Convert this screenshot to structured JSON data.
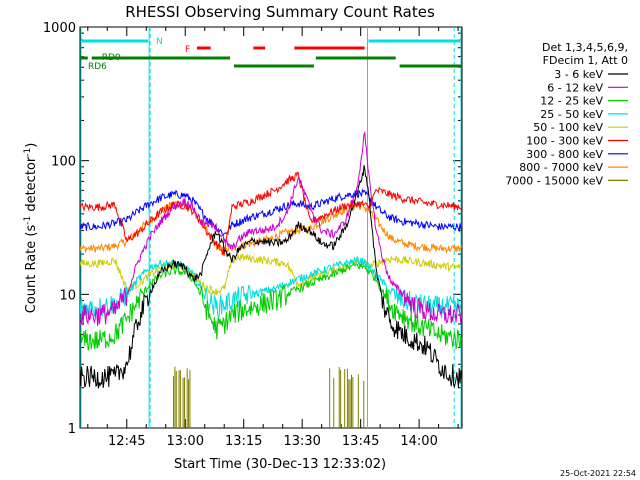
{
  "chart_data": {
    "type": "line",
    "title": "RHESSI Observing Summary Count Rates",
    "xlabel": "Start Time (30-Dec-13 12:33:02)",
    "ylabel_parts": [
      "Count Rate (s",
      "-1",
      " detector",
      "-1",
      ")"
    ],
    "yscale": "log",
    "ylim": [
      1,
      1000
    ],
    "xlim_minutes": [
      0,
      98
    ],
    "x_start": "12:33:02",
    "x_ticks": [
      {
        "label": "12:45",
        "t": 12
      },
      {
        "label": "13:00",
        "t": 27
      },
      {
        "label": "13:15",
        "t": 42
      },
      {
        "label": "13:30",
        "t": 57
      },
      {
        "label": "13:45",
        "t": 72
      },
      {
        "label": "14:00",
        "t": 87
      }
    ],
    "y_ticks": [
      {
        "label": "1",
        "v": 1
      },
      {
        "label": "10",
        "v": 10
      },
      {
        "label": "100",
        "v": 100
      },
      {
        "label": "1000",
        "v": 1000
      }
    ],
    "legend_header": [
      "Det 1,3,4,5,6,9,",
      "FDecim 1, Att 0"
    ],
    "legend_placement": "right",
    "series": [
      {
        "name": "3 - 6 keV",
        "color": "#000000",
        "x": [
          0,
          5,
          9,
          12,
          15,
          18,
          21,
          24,
          27,
          29,
          31,
          33,
          35,
          37,
          39,
          41,
          44,
          47,
          50,
          53,
          56,
          59,
          62,
          65,
          68,
          71,
          73,
          74,
          76,
          78,
          80,
          83,
          86,
          89,
          92,
          95,
          98
        ],
        "y": [
          2.4,
          2.4,
          2.4,
          3.0,
          6.5,
          10.5,
          15,
          17,
          16,
          13,
          14,
          22,
          30,
          22,
          18,
          22,
          25,
          25,
          24,
          25,
          33,
          30,
          24,
          23,
          31,
          55,
          90,
          60,
          15,
          8,
          6,
          5,
          4.5,
          4,
          3,
          2.5,
          2.4
        ]
      },
      {
        "name": "6 - 12 keV",
        "color": "#cc00cc",
        "x": [
          0,
          5,
          9,
          12,
          15,
          18,
          21,
          24,
          27,
          29,
          31,
          33,
          35,
          37,
          39,
          41,
          44,
          47,
          50,
          53,
          56,
          59,
          62,
          65,
          68,
          71,
          73,
          74,
          76,
          78,
          80,
          83,
          86,
          89,
          92,
          95,
          98
        ],
        "y": [
          7,
          7,
          7.5,
          10,
          18,
          27,
          36,
          45,
          50,
          45,
          35,
          33,
          32,
          25,
          22,
          26,
          30,
          30,
          32,
          40,
          75,
          45,
          30,
          28,
          35,
          60,
          160,
          80,
          30,
          17,
          12,
          10,
          8,
          7.5,
          7,
          7,
          7
        ]
      },
      {
        "name": "12 - 25 keV",
        "color": "#00cc00",
        "x": [
          0,
          5,
          9,
          12,
          15,
          18,
          21,
          24,
          27,
          29,
          31,
          33,
          35,
          37,
          39,
          41,
          44,
          47,
          50,
          53,
          56,
          59,
          62,
          65,
          68,
          71,
          73,
          74,
          76,
          78,
          80,
          83,
          86,
          89,
          92,
          95,
          98
        ],
        "y": [
          4.5,
          4.5,
          5,
          6.5,
          9,
          12,
          14,
          15,
          14.5,
          13,
          10,
          7,
          5.5,
          6,
          7,
          7.5,
          8,
          8.5,
          9,
          10,
          11,
          12,
          13,
          14,
          15.5,
          16.5,
          16,
          15,
          13,
          10,
          8,
          7,
          6,
          5.5,
          5,
          4.8,
          4.5
        ]
      },
      {
        "name": "25 - 50 keV",
        "color": "#00dddd",
        "x": [
          0,
          5,
          9,
          12,
          15,
          18,
          21,
          24,
          27,
          29,
          31,
          33,
          35,
          37,
          39,
          41,
          44,
          47,
          50,
          53,
          56,
          59,
          62,
          65,
          68,
          71,
          73,
          74,
          76,
          78,
          80,
          83,
          86,
          89,
          92,
          95,
          98
        ],
        "y": [
          8,
          8,
          8.5,
          10,
          13,
          16,
          17,
          17,
          16,
          14,
          11,
          9,
          8,
          8.5,
          9,
          9.5,
          10,
          10.5,
          11,
          12,
          13,
          14,
          15,
          16,
          17,
          18,
          17.5,
          16,
          14,
          12,
          10,
          9,
          8.5,
          8.2,
          8,
          8,
          8
        ]
      },
      {
        "name": "50 - 100 keV",
        "color": "#cccc00",
        "x": [
          0,
          5,
          9,
          12,
          15,
          18,
          21,
          24,
          27,
          29,
          31,
          33,
          35,
          37,
          39,
          41,
          44,
          47,
          50,
          53,
          56,
          59,
          62,
          65,
          68,
          71,
          73,
          74,
          76,
          78,
          80,
          83,
          86,
          89,
          92,
          95,
          98
        ],
        "y": [
          17,
          17,
          18,
          11,
          12,
          14,
          16,
          16.5,
          16,
          14,
          12,
          11,
          10.5,
          11,
          18,
          19,
          18.5,
          18,
          17.5,
          17,
          12,
          13,
          14,
          15,
          16,
          17.5,
          17,
          16,
          17,
          18,
          18.5,
          18,
          17.5,
          17,
          16.5,
          16,
          16
        ]
      },
      {
        "name": "100 - 300 keV",
        "color": "#ff0000",
        "x": [
          0,
          5,
          9,
          12,
          15,
          18,
          21,
          24,
          27,
          29,
          31,
          33,
          35,
          37,
          39,
          41,
          44,
          47,
          50,
          53,
          56,
          59,
          62,
          65,
          68,
          71,
          73,
          74,
          76,
          78,
          80,
          83,
          86,
          89,
          92,
          95,
          98
        ],
        "y": [
          45,
          45,
          47,
          25,
          29,
          35,
          42,
          47,
          46,
          42,
          35,
          28,
          24,
          20,
          45,
          47,
          50,
          55,
          60,
          70,
          78,
          35,
          38,
          42,
          46,
          48,
          47,
          44,
          60,
          58,
          55,
          52,
          50,
          48,
          47,
          46,
          45
        ]
      },
      {
        "name": "300 - 800 keV",
        "color": "#0000ff",
        "x": [
          0,
          5,
          9,
          12,
          15,
          18,
          21,
          24,
          27,
          29,
          31,
          33,
          35,
          37,
          39,
          41,
          44,
          47,
          50,
          53,
          56,
          59,
          62,
          65,
          68,
          71,
          73,
          74,
          76,
          78,
          80,
          83,
          86,
          89,
          92,
          95,
          98
        ],
        "y": [
          32,
          32,
          34,
          36,
          42,
          48,
          53,
          56,
          55,
          50,
          42,
          36,
          32,
          28,
          33,
          35,
          38,
          40,
          43,
          46,
          48,
          45,
          48,
          52,
          55,
          57,
          56,
          54,
          45,
          40,
          37,
          35,
          34,
          33,
          32,
          32,
          32
        ]
      },
      {
        "name": "800 - 7000 keV",
        "color": "#ff8800",
        "x": [
          0,
          5,
          9,
          12,
          15,
          18,
          21,
          24,
          27,
          29,
          31,
          33,
          35,
          37,
          39,
          41,
          44,
          47,
          50,
          53,
          56,
          59,
          62,
          65,
          68,
          71,
          73,
          74,
          76,
          78,
          80,
          83,
          86,
          89,
          92,
          95,
          98
        ],
        "y": [
          22,
          22,
          23,
          25,
          30,
          36,
          42,
          48,
          47,
          43,
          35,
          28,
          23,
          21,
          22,
          23,
          24,
          25,
          27,
          29,
          30,
          31,
          35,
          39,
          43,
          46,
          45,
          42,
          36,
          30,
          26,
          24,
          23,
          22.5,
          22,
          22,
          22
        ]
      },
      {
        "name": "7000 - 15000 keV",
        "color": "#808000",
        "bursts": [
          {
            "t0": 24,
            "t1": 28.5
          },
          {
            "t0": 63,
            "t1": 74
          }
        ],
        "burst_level": 2.5
      }
    ],
    "markers": {
      "night_periods": [
        {
          "t0": 0,
          "t1": 18
        },
        {
          "t0": 73.5,
          "t1": 98
        }
      ],
      "night_label": "N",
      "saa_lines": [
        18,
        96
      ],
      "flare_label": "F",
      "flare_segments": [
        [
          30,
          33.5
        ],
        [
          44.5,
          47.5
        ],
        [
          55,
          73
        ]
      ],
      "rd0_label": "RD0",
      "rd0_segments": [
        [
          3,
          9.5
        ]
      ],
      "rd6_label": "RD6",
      "rd6_segments": [
        [
          0,
          2
        ],
        [
          9.5,
          38.5
        ],
        [
          39.5,
          60
        ],
        [
          60.5,
          81
        ],
        [
          82,
          98
        ]
      ]
    }
  },
  "timestamp": "25-Oct-2021 22:54"
}
